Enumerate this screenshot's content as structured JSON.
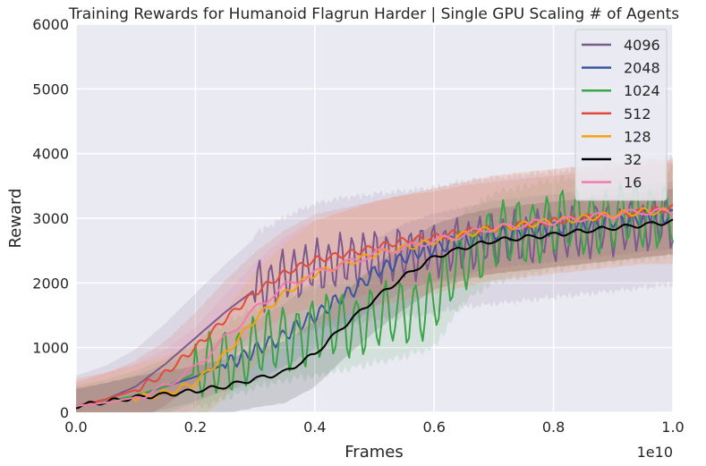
{
  "chart_data": {
    "type": "line",
    "title": "Training Rewards for Humanoid Flagrun Harder | Single GPU Scaling # of Agents",
    "xlabel": "Frames",
    "ylabel": "Reward",
    "x_offset_label": "1e10",
    "xlim": [
      0,
      1.0
    ],
    "ylim": [
      0,
      6000
    ],
    "x_ticks": [
      "0.0",
      "0.2",
      "0.4",
      "0.6",
      "0.8",
      "1.0"
    ],
    "y_ticks": [
      "0",
      "1000",
      "2000",
      "3000",
      "4000",
      "5000",
      "6000"
    ],
    "grid": true,
    "legend_position": "top-right",
    "x": [
      0.0,
      0.05,
      0.1,
      0.15,
      0.2,
      0.25,
      0.3,
      0.35,
      0.4,
      0.45,
      0.5,
      0.55,
      0.6,
      0.65,
      0.7,
      0.75,
      0.8,
      0.85,
      0.9,
      0.95,
      1.0
    ],
    "series": [
      {
        "name": "4096",
        "color": "#7b5a8e",
        "band": 900,
        "osc": 900,
        "osc_start": 0.3,
        "values": [
          100,
          200,
          400,
          750,
          1150,
          1550,
          1900,
          2100,
          2250,
          2350,
          2400,
          2450,
          2500,
          2600,
          2650,
          2700,
          2750,
          2800,
          2850,
          2900,
          2950
        ]
      },
      {
        "name": "2048",
        "color": "#3a56a0",
        "band": 500,
        "osc": 250,
        "osc_start": 0.25,
        "values": [
          100,
          160,
          250,
          400,
          550,
          750,
          950,
          1200,
          1500,
          1800,
          2150,
          2400,
          2550,
          2650,
          2750,
          2800,
          2850,
          2900,
          2950,
          3000,
          3050
        ]
      },
      {
        "name": "1024",
        "color": "#3aa548",
        "band": 600,
        "osc": 1100,
        "osc_start": 0.2,
        "values": [
          100,
          160,
          260,
          400,
          600,
          800,
          1000,
          1150,
          1250,
          1350,
          1450,
          1550,
          1700,
          2400,
          2700,
          2800,
          2900,
          2950,
          3000,
          3050,
          3100
        ]
      },
      {
        "name": "512",
        "color": "#e24a3b",
        "band": 700,
        "osc": 120,
        "osc_start": 0.1,
        "values": [
          100,
          200,
          350,
          600,
          1000,
          1450,
          1850,
          2150,
          2350,
          2450,
          2550,
          2650,
          2700,
          2800,
          2850,
          2900,
          2950,
          3000,
          3050,
          3100,
          3150
        ]
      },
      {
        "name": "128",
        "color": "#f5a20a",
        "band": 800,
        "osc": 120,
        "osc_start": 0.1,
        "values": [
          100,
          150,
          220,
          300,
          450,
          900,
          1450,
          1850,
          2150,
          2300,
          2450,
          2550,
          2650,
          2750,
          2850,
          2900,
          2950,
          3000,
          3050,
          3100,
          3100
        ]
      },
      {
        "name": "32",
        "color": "#000000",
        "band": 500,
        "osc": 80,
        "osc_start": 0.0,
        "values": [
          100,
          160,
          230,
          280,
          330,
          400,
          520,
          620,
          900,
          1350,
          1750,
          2100,
          2400,
          2550,
          2650,
          2700,
          2750,
          2800,
          2850,
          2900,
          2950
        ]
      },
      {
        "name": "16",
        "color": "#f07bb0",
        "band": 800,
        "osc": 120,
        "osc_start": 0.1,
        "values": [
          100,
          150,
          230,
          400,
          700,
          1150,
          1600,
          1950,
          2150,
          2300,
          2450,
          2550,
          2650,
          2750,
          2850,
          2900,
          2950,
          3000,
          3050,
          3100,
          3100
        ]
      }
    ]
  }
}
